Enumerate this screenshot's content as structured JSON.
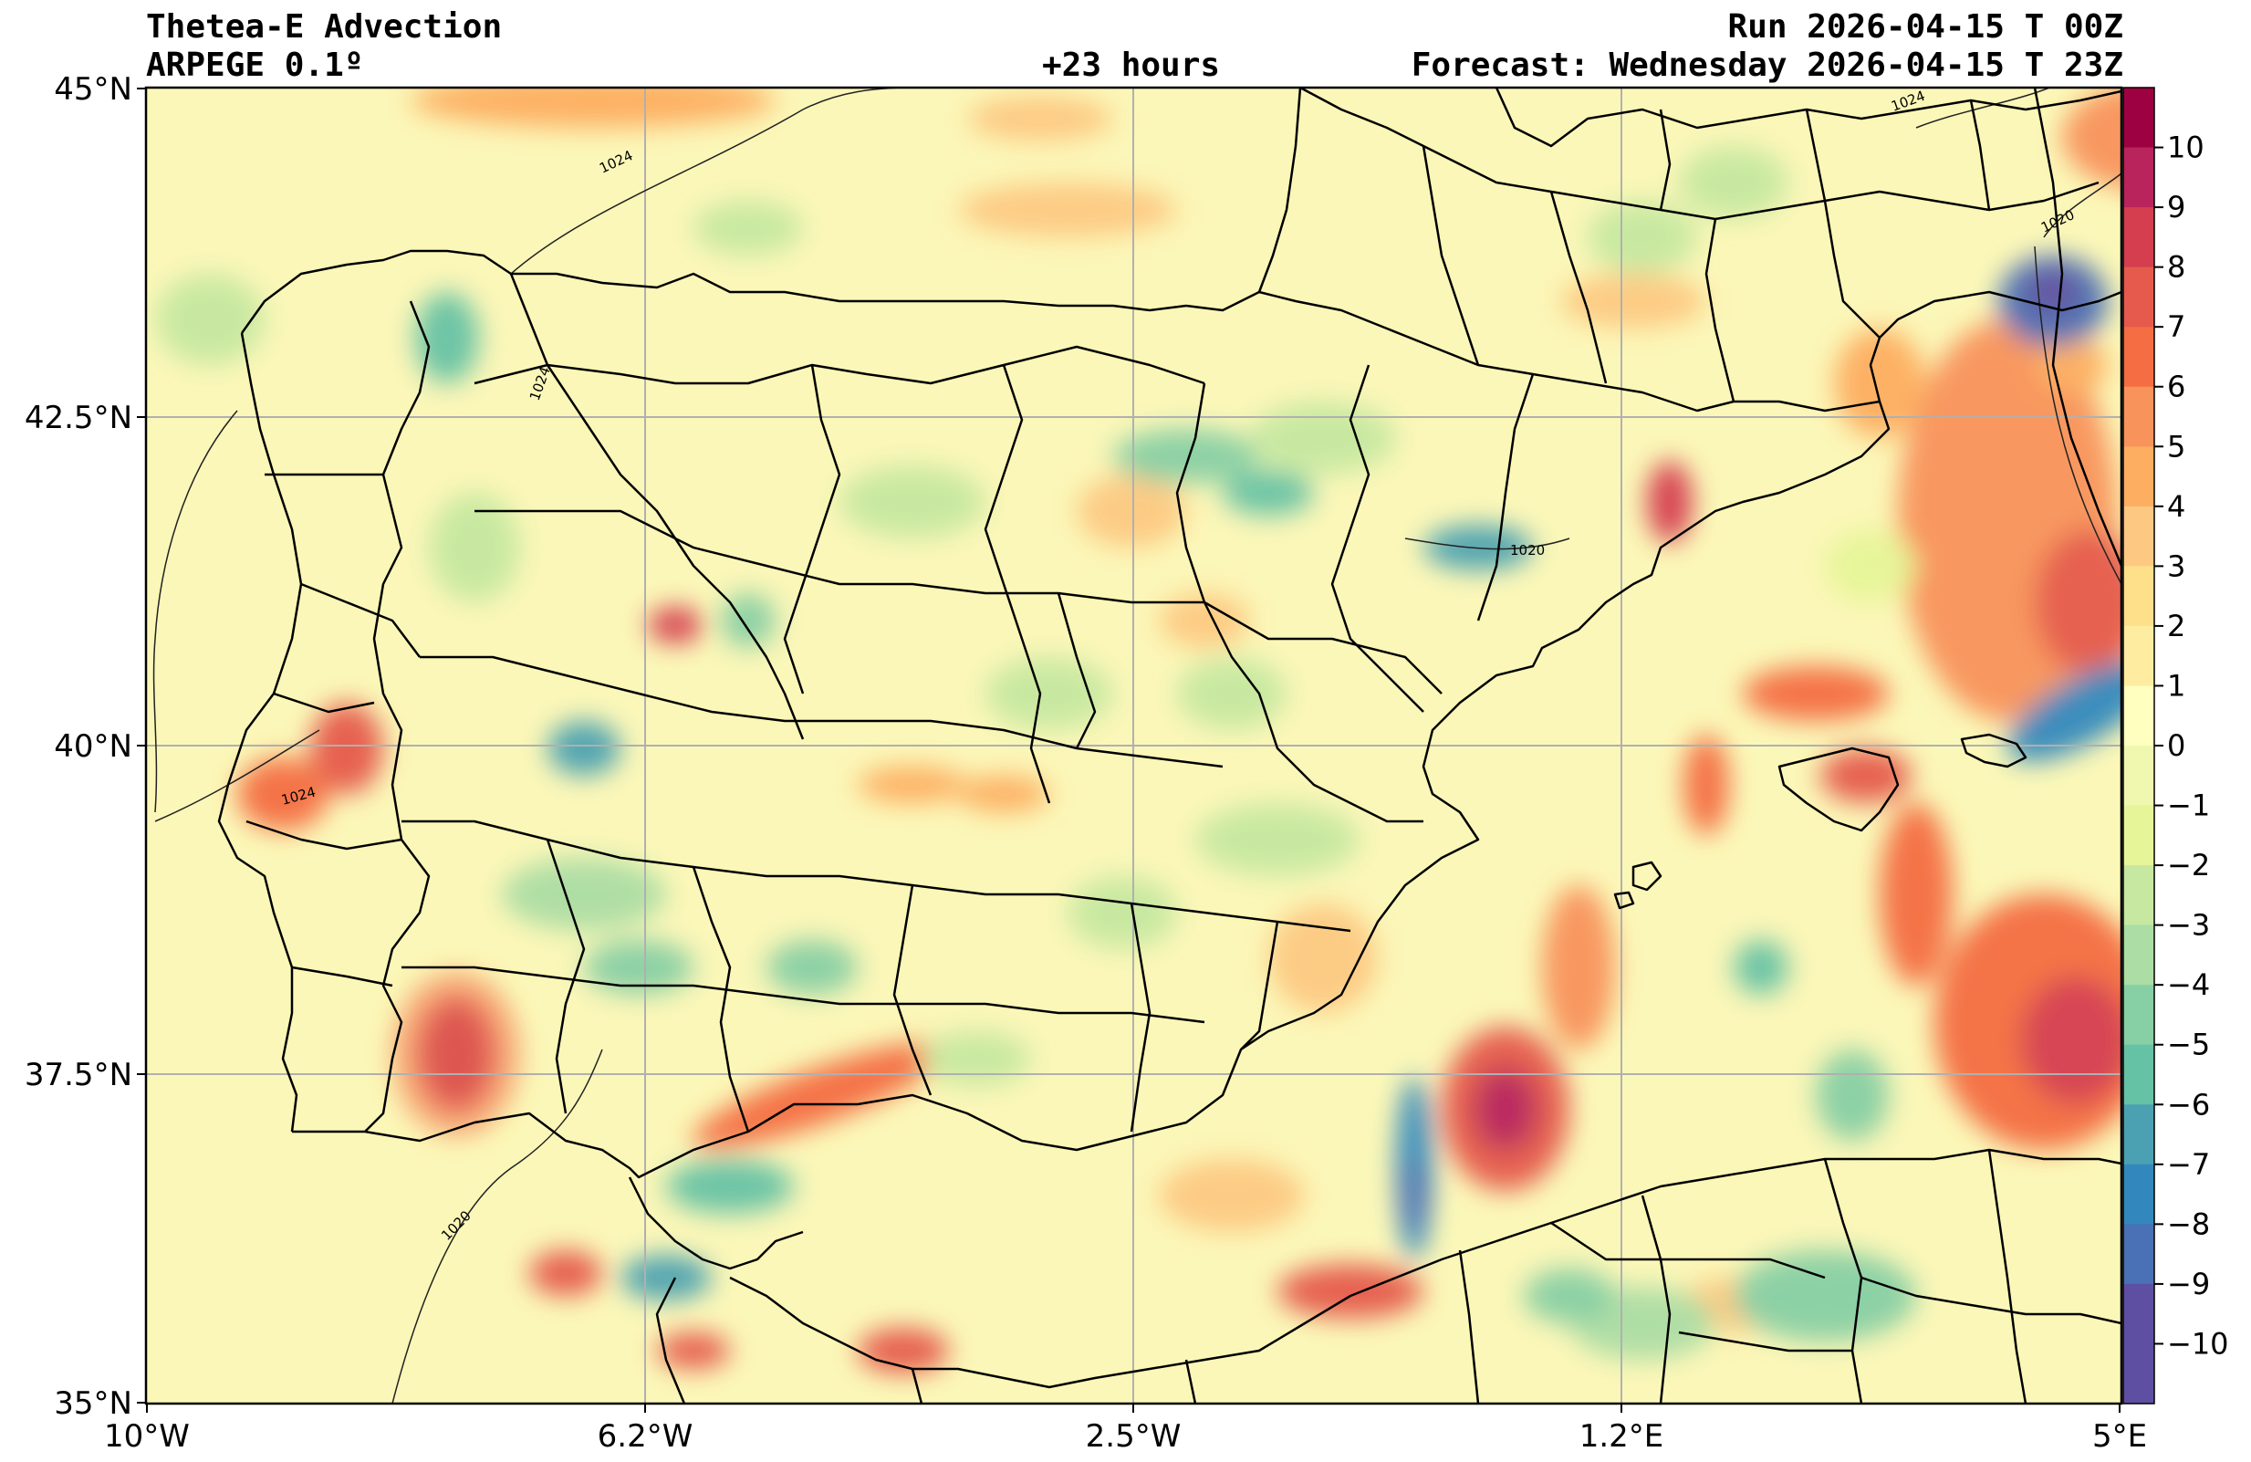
{
  "header": {
    "title": "Thetea-E Advection",
    "model": "ARPEGE 0.1º",
    "lead": "+23 hours",
    "run": "Run 2026-04-15 T 00Z",
    "forecast": "Forecast: Wednesday 2026-04-15 T 23Z"
  },
  "axes": {
    "lat_ticks": [
      "45°N",
      "42.5°N",
      "40°N",
      "37.5°N",
      "35°N"
    ],
    "lon_ticks": [
      "10°W",
      "6.2°W",
      "2.5°W",
      "1.2°E",
      "5°E"
    ]
  },
  "isobars": [
    {
      "label": "1024"
    },
    {
      "label": "1024"
    },
    {
      "label": "1024"
    },
    {
      "label": "1020"
    },
    {
      "label": "1020"
    },
    {
      "label": "1020"
    },
    {
      "label": "1024"
    }
  ],
  "colorbar": {
    "levels": [
      "10",
      "9",
      "8",
      "7",
      "6",
      "5",
      "4",
      "3",
      "2",
      "1",
      "0",
      "−1",
      "−2",
      "−3",
      "−4",
      "−5",
      "−6",
      "−7",
      "−8",
      "−9",
      "−10"
    ],
    "colors": [
      "#9e0142",
      "#b8245b",
      "#d53e4f",
      "#e55a4c",
      "#f46d43",
      "#f8935b",
      "#fdae61",
      "#fdc982",
      "#fee08b",
      "#feeda1",
      "#ffffbf",
      "#f0f8b0",
      "#e6f598",
      "#c6e8a0",
      "#abdda4",
      "#87cfa4",
      "#66c2a5",
      "#4ba1b1",
      "#3288bd",
      "#4a70b5",
      "#5e4fa2"
    ]
  },
  "chart_data": {
    "type": "map",
    "field": "Thetea-E Advection",
    "lon_range": [
      -10,
      5
    ],
    "lat_range": [
      35,
      45
    ],
    "colorbar_range": [
      -10,
      10
    ]
  }
}
